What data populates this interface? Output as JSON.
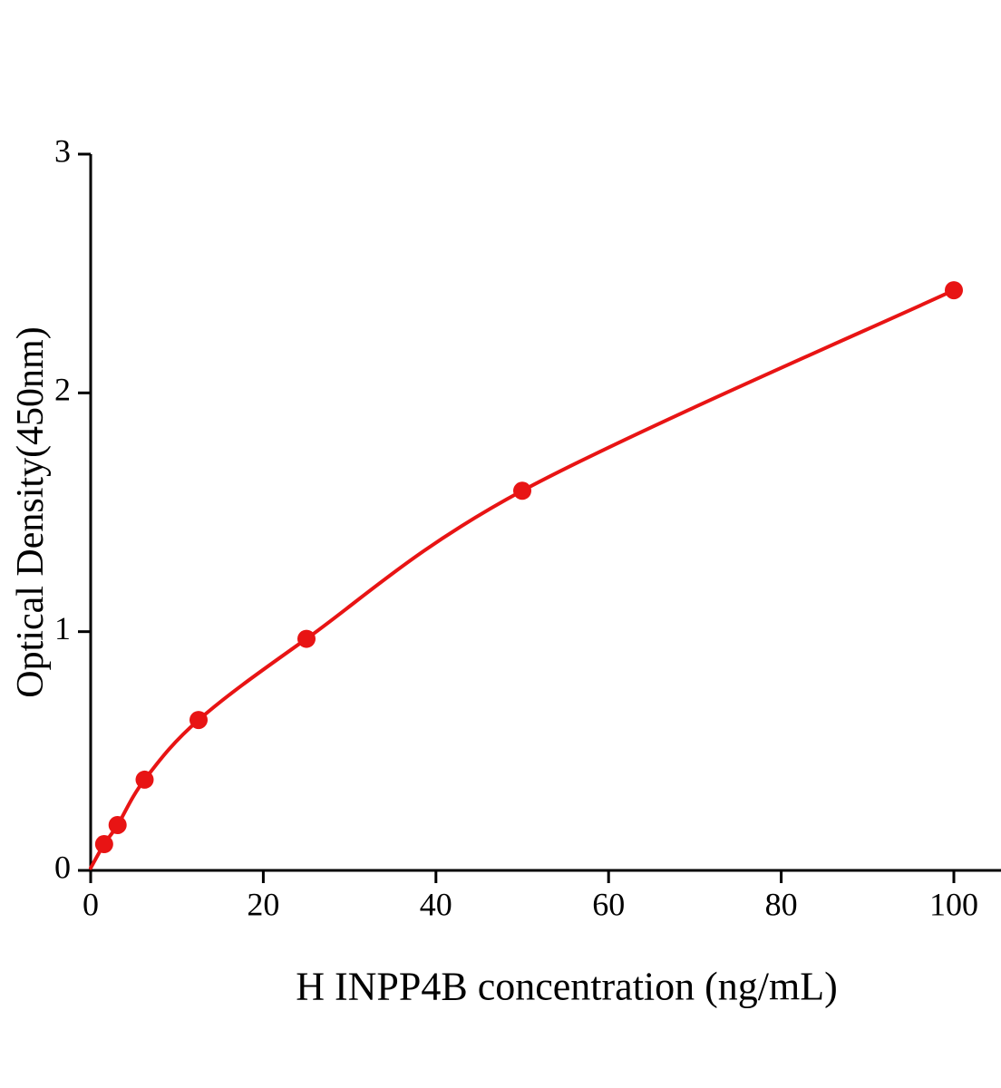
{
  "chart_data": {
    "type": "line",
    "title": "",
    "xlabel": "H INPP4B concentration (ng/mL)",
    "ylabel": "Optical Density(450nm)",
    "x": [
      1.56,
      3.12,
      6.25,
      12.5,
      25,
      50,
      100
    ],
    "y": [
      0.11,
      0.19,
      0.38,
      0.63,
      0.97,
      1.59,
      2.43
    ],
    "curve_origin": {
      "x": 0,
      "y": 0.01
    },
    "xlim": [
      0,
      105
    ],
    "ylim": [
      0,
      3
    ],
    "x_ticks": [
      0,
      20,
      40,
      60,
      80,
      100
    ],
    "y_ticks": [
      0,
      1,
      2,
      3
    ],
    "grid": false,
    "legend": null,
    "colors": {
      "line": "#e81414",
      "marker": "#e81414",
      "axis": "#000000"
    },
    "style": {
      "marker_radius": 10,
      "line_width": 4,
      "axis_width": 3,
      "tick_length": 14,
      "tick_font_size": 36
    }
  }
}
